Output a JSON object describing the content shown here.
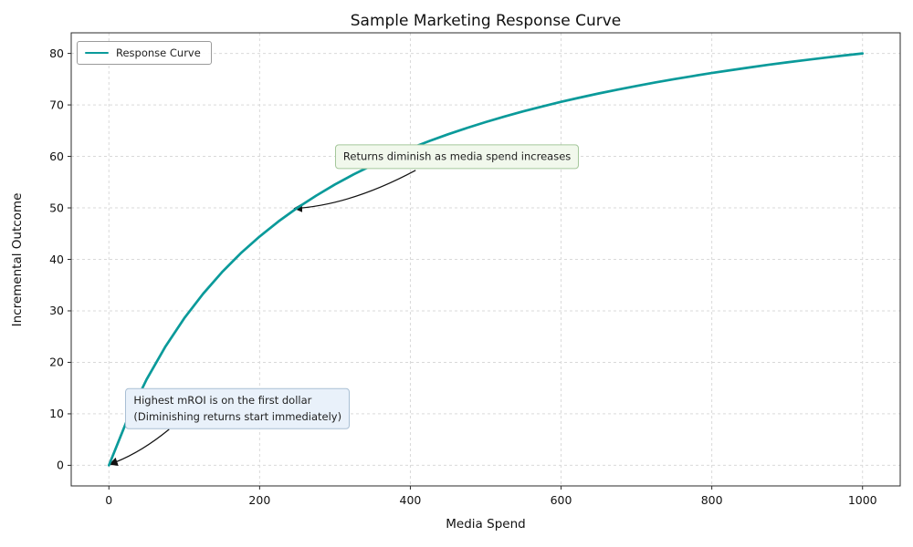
{
  "chart_data": {
    "type": "line",
    "title": "Sample Marketing Response Curve",
    "xlabel": "Media Spend",
    "ylabel": "Incremental Outcome",
    "xlim": [
      -50,
      1050
    ],
    "ylim": [
      -4,
      84
    ],
    "xticks": [
      0,
      200,
      400,
      600,
      800,
      1000
    ],
    "yticks": [
      0,
      10,
      20,
      30,
      40,
      50,
      60,
      70,
      80
    ],
    "grid": true,
    "grid_color": "#d9d9d9",
    "spine_color": "#2a2a2a",
    "legend": {
      "position": "upper-left",
      "entries": [
        {
          "label": "Response Curve",
          "color": "#0a9a9a"
        }
      ]
    },
    "series": [
      {
        "name": "Response Curve",
        "color": "#0a9a9a",
        "width": 2.7,
        "x": [
          0,
          25,
          50,
          75,
          100,
          125,
          150,
          175,
          200,
          225,
          250,
          275,
          300,
          325,
          350,
          375,
          400,
          425,
          450,
          475,
          500,
          525,
          550,
          575,
          600,
          625,
          650,
          675,
          700,
          725,
          750,
          775,
          800,
          825,
          850,
          875,
          900,
          925,
          950,
          975,
          1000
        ],
        "y": [
          0,
          9.09,
          16.67,
          23.08,
          28.57,
          33.33,
          37.5,
          41.18,
          44.44,
          47.37,
          50,
          52.38,
          54.55,
          56.52,
          58.33,
          60,
          61.54,
          62.96,
          64.29,
          65.52,
          66.67,
          67.74,
          68.75,
          69.7,
          70.59,
          71.43,
          72.22,
          72.97,
          73.68,
          74.36,
          75,
          75.61,
          76.19,
          76.74,
          77.27,
          77.78,
          78.26,
          78.72,
          79.17,
          79.59,
          80
        ]
      }
    ],
    "annotations": [
      {
        "text": "Returns diminish as media spend increases",
        "box_fill": "#f1f8ec",
        "box_border": "#a5c79b",
        "anchor_xy": [
          300,
          60
        ],
        "arrow": {
          "start": [
            407,
            57.3
          ],
          "control": [
            320,
            50.5
          ],
          "end": [
            246,
            49.9
          ]
        }
      },
      {
        "text": "Highest mROI is on the first dollar\n(Diminishing returns start immediately)",
        "box_fill": "#e9f1fa",
        "box_border": "#a9bfd4",
        "anchor_xy": [
          22,
          11
        ],
        "arrow": {
          "start": [
            80,
            7.0
          ],
          "control": [
            40,
            2.2
          ],
          "end": [
            1,
            0.2
          ]
        }
      }
    ]
  }
}
